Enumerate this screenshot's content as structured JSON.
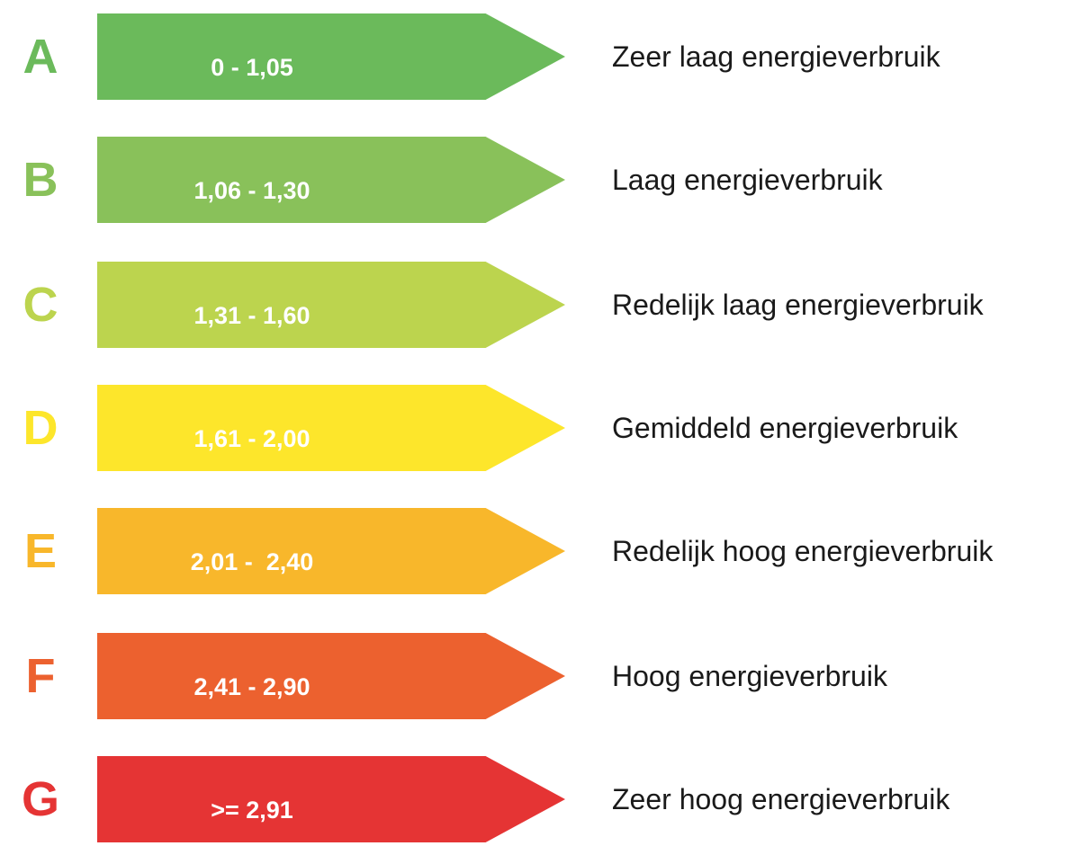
{
  "labels": [
    {
      "letter": "A",
      "range": "0 - 1,05",
      "description": "Zeer laag energieverbruik",
      "color": "#6bba5b"
    },
    {
      "letter": "B",
      "range": "1,06 - 1,30",
      "description": "Laag energieverbruik",
      "color": "#89c15a"
    },
    {
      "letter": "C",
      "range": "1,31 - 1,60",
      "description": "Redelijk laag energieverbruik",
      "color": "#bcd44e"
    },
    {
      "letter": "D",
      "range": "1,61 - 2,00",
      "description": "Gemiddeld energieverbruik",
      "color": "#fde62b"
    },
    {
      "letter": "E",
      "range": "2,01 -  2,40",
      "description": "Redelijk hoog energieverbruik",
      "color": "#f8b72b"
    },
    {
      "letter": "F",
      "range": "2,41 - 2,90",
      "description": "Hoog energieverbruik",
      "color": "#ec612f"
    },
    {
      "letter": "G",
      "range": ">= 2,91",
      "description": "Zeer hoog energieverbruik",
      "color": "#e53434"
    }
  ]
}
